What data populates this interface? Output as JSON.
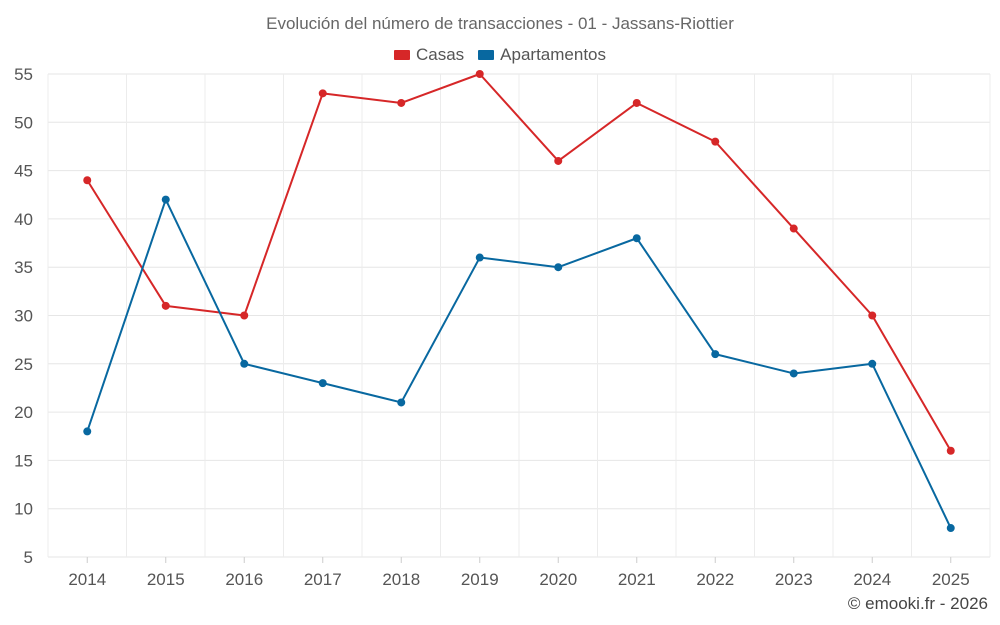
{
  "chart_data": {
    "type": "line",
    "title": "Evolución del número de transacciones - 01 - Jassans-Riottier",
    "categories": [
      "2014",
      "2015",
      "2016",
      "2017",
      "2018",
      "2019",
      "2020",
      "2021",
      "2022",
      "2023",
      "2024",
      "2025"
    ],
    "series": [
      {
        "name": "Casas",
        "color": "#d62728",
        "values": [
          44,
          31,
          30,
          53,
          52,
          55,
          46,
          52,
          48,
          39,
          30,
          16
        ]
      },
      {
        "name": "Apartamentos",
        "color": "#0868a0",
        "values": [
          18,
          42,
          25,
          23,
          21,
          36,
          35,
          38,
          26,
          24,
          25,
          8
        ]
      }
    ],
    "yticks": [
      5,
      10,
      15,
      20,
      25,
      30,
      35,
      40,
      45,
      50,
      55
    ],
    "ylim": [
      5,
      55
    ],
    "xlabel": "",
    "ylabel": "",
    "legend_position": "top-center",
    "grid": true
  },
  "footer": "© emooki.fr - 2026"
}
